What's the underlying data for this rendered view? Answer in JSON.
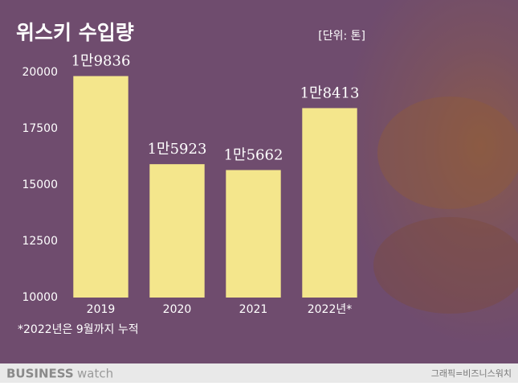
{
  "chart_data": {
    "type": "bar",
    "title": "위스키 수입량",
    "unit": "[단위: 톤]",
    "categories": [
      "2019",
      "2020",
      "2021",
      "2022년*"
    ],
    "values": [
      19836,
      15923,
      15662,
      18413
    ],
    "value_labels": [
      "1만9836",
      "1만5923",
      "1만5662",
      "1만8413"
    ],
    "color": "#f4e68c",
    "ylim": [
      10000,
      20000
    ],
    "yticks": [
      10000,
      12500,
      15000,
      17500,
      20000
    ],
    "note": "*2022년은 9월까지 누적",
    "logo_bold": "BUSINESS",
    "logo_light": "watch",
    "source": "그래픽=비즈니스워치"
  }
}
